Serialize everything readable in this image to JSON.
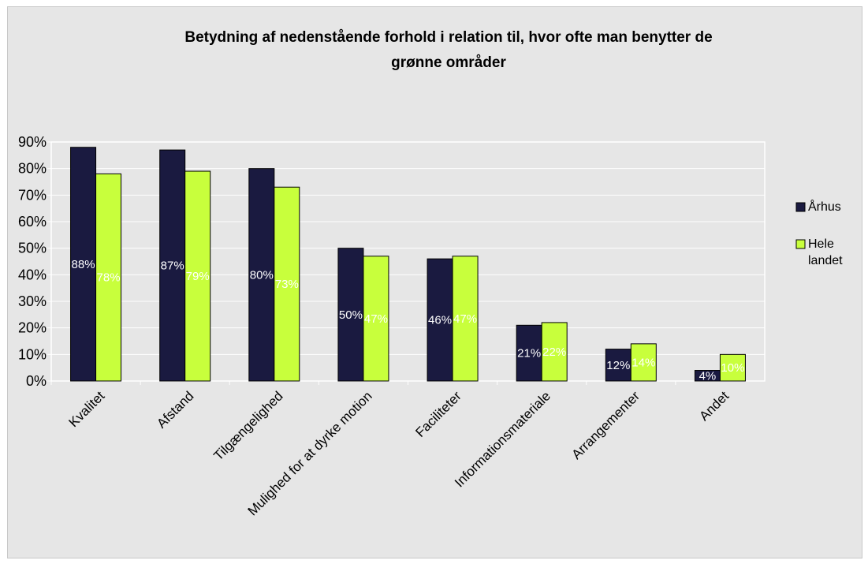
{
  "chart_data": {
    "type": "bar",
    "title": "Betydning af nedenstående forhold i relation til, hvor ofte man benytter de grønne områder",
    "title_lines": [
      "Betydning af nedenstående forhold i relation til, hvor ofte man benytter de",
      "grønne områder"
    ],
    "categories": [
      "Kvalitet",
      "Afstand",
      "Tilgængelighed",
      "Mulighed for at dyrke motion",
      "Faciliteter",
      "Informationsmateriale",
      "Arrangementer",
      "Andet"
    ],
    "series": [
      {
        "name": "Århus",
        "values": [
          88,
          87,
          80,
          50,
          46,
          21,
          12,
          4
        ],
        "labels": [
          "88%",
          "87%",
          "80%",
          "50%",
          "46%",
          "21%",
          "12%",
          "4%"
        ],
        "color": "#1a1a40"
      },
      {
        "name": "Hele landet",
        "values": [
          78,
          79,
          73,
          47,
          47,
          22,
          14,
          10
        ],
        "labels": [
          "78%",
          "79%",
          "73%",
          "47%",
          "47%",
          "22%",
          "14%",
          "10%"
        ],
        "color": "#c8ff3c"
      }
    ],
    "yticks": [
      "0%",
      "10%",
      "20%",
      "30%",
      "40%",
      "50%",
      "60%",
      "70%",
      "80%",
      "90%"
    ],
    "ylim": [
      0,
      90
    ],
    "grid": true,
    "legend_position": "right",
    "legend_lines": [
      [
        "Århus"
      ],
      [
        "Hele",
        "landet"
      ]
    ]
  }
}
